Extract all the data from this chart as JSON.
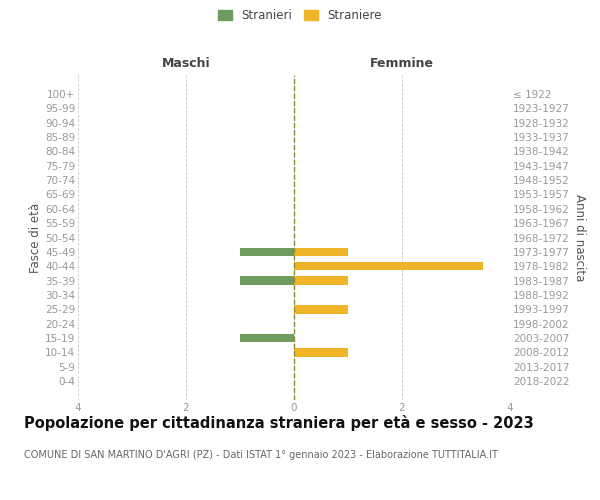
{
  "age_groups": [
    "0-4",
    "5-9",
    "10-14",
    "15-19",
    "20-24",
    "25-29",
    "30-34",
    "35-39",
    "40-44",
    "45-49",
    "50-54",
    "55-59",
    "60-64",
    "65-69",
    "70-74",
    "75-79",
    "80-84",
    "85-89",
    "90-94",
    "95-99",
    "100+"
  ],
  "birth_years": [
    "2018-2022",
    "2013-2017",
    "2008-2012",
    "2003-2007",
    "1998-2002",
    "1993-1997",
    "1988-1992",
    "1983-1987",
    "1978-1982",
    "1973-1977",
    "1968-1972",
    "1963-1967",
    "1958-1962",
    "1953-1957",
    "1948-1952",
    "1943-1947",
    "1938-1942",
    "1933-1937",
    "1928-1932",
    "1923-1927",
    "≤ 1922"
  ],
  "males": [
    0,
    0,
    0,
    1,
    0,
    0,
    0,
    1,
    0,
    1,
    0,
    0,
    0,
    0,
    0,
    0,
    0,
    0,
    0,
    0,
    0
  ],
  "females": [
    0,
    0,
    1,
    0,
    0,
    1,
    0,
    1,
    3.5,
    1,
    0,
    0,
    0,
    0,
    0,
    0,
    0,
    0,
    0,
    0,
    0
  ],
  "male_color": "#6e9b5e",
  "female_color": "#f0b429",
  "title": "Popolazione per cittadinanza straniera per età e sesso - 2023",
  "subtitle": "COMUNE DI SAN MARTINO D'AGRI (PZ) - Dati ISTAT 1° gennaio 2023 - Elaborazione TUTTITALIA.IT",
  "ylabel_left": "Fasce di età",
  "ylabel_right": "Anni di nascita",
  "xlabel_left": "Maschi",
  "xlabel_right": "Femmine",
  "legend_stranieri": "Stranieri",
  "legend_straniere": "Straniere",
  "xlim": 4,
  "background_color": "#ffffff",
  "grid_color": "#cccccc",
  "tick_color": "#999999",
  "center_line_color": "#8b8b3a",
  "title_fontsize": 10.5,
  "subtitle_fontsize": 7,
  "tick_fontsize": 7.5,
  "label_fontsize": 8.5
}
